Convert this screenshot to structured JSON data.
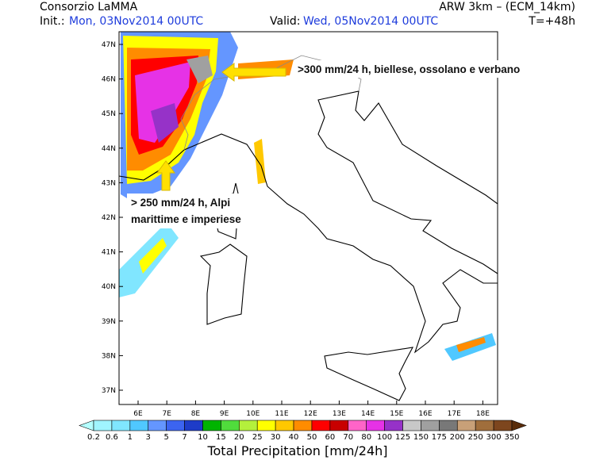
{
  "header": {
    "title": "Consorzio LaMMA",
    "model": "ARW 3km – (ECM_14km)",
    "init_label": "Init.:",
    "init_value": "Mon, 03Nov2014 00UTC",
    "valid_label": "Valid:",
    "valid_value": "Wed, 05Nov2014 00UTC",
    "lead_time": "T=+48h"
  },
  "map": {
    "lat_labels": [
      "47N",
      "46N",
      "45N",
      "44N",
      "43N",
      "42N",
      "41N",
      "40N",
      "39N",
      "38N",
      "37N"
    ],
    "lon_labels": [
      "6E",
      "7E",
      "8E",
      "9E",
      "10E",
      "11E",
      "12E",
      "13E",
      "14E",
      "15E",
      "16E",
      "17E",
      "18E"
    ]
  },
  "annotations": [
    {
      "lines": [
        ">300 mm/24 h, biellese, ossolano e verbano"
      ]
    },
    {
      "lines": [
        "> 250 mm/24 h, Alpi",
        "marittime e imperiese"
      ]
    }
  ],
  "colorbar": {
    "title": "Total Precipitation [mm/24h]",
    "labels": [
      "0.2",
      "0.6",
      "1",
      "3",
      "5",
      "7",
      "10",
      "15",
      "20",
      "25",
      "30",
      "40",
      "50",
      "60",
      "70",
      "80",
      "100",
      "125",
      "150",
      "175",
      "200",
      "250",
      "300",
      "350"
    ],
    "colors": [
      "#b4ffff",
      "#a0f5ff",
      "#80e6ff",
      "#50c8ff",
      "#6496ff",
      "#3c64f0",
      "#1e3cc8",
      "#00b400",
      "#50dc3c",
      "#b4f03c",
      "#ffff00",
      "#ffc800",
      "#ff8c00",
      "#ff0000",
      "#c80000",
      "#ff64c8",
      "#e632e6",
      "#9632c8",
      "#c8c8c8",
      "#a0a0a0",
      "#787878",
      "#c8a078",
      "#a06e3c",
      "#7d461e",
      "#5a2d0a"
    ]
  }
}
